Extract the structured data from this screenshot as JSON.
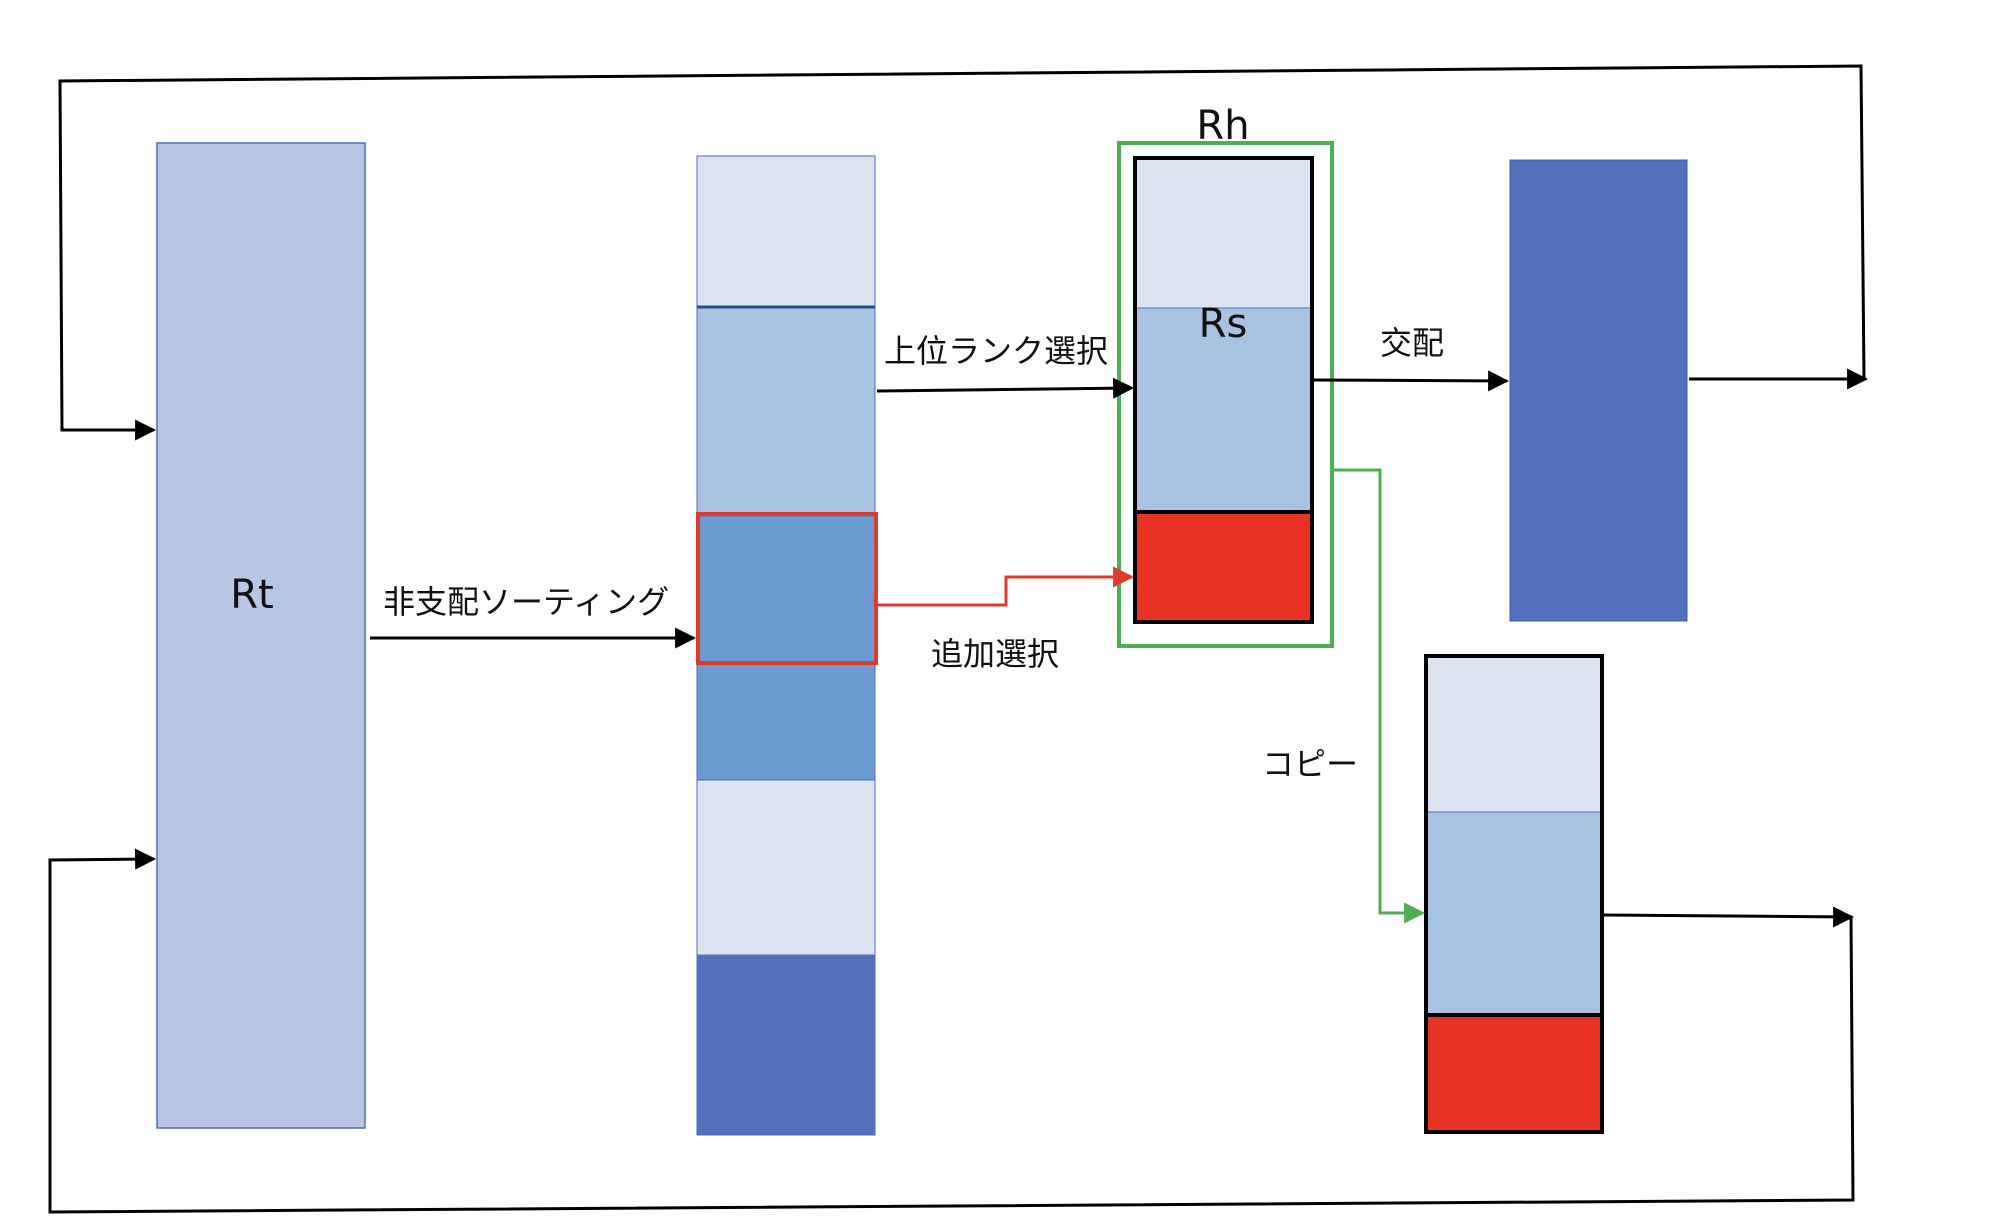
{
  "labels": {
    "rt": "Rt",
    "rh": "Rh",
    "rs": "Rs",
    "non_dominated_sorting": "非支配ソーティング",
    "top_rank_selection": "上位ランク選択",
    "additional_selection": "追加選択",
    "crossover": "交配",
    "copy": "コピー"
  },
  "colors": {
    "light_lavender": "#dce3f1",
    "light_blue": "#a8c2e2",
    "medium_blue": "#6b9bd0",
    "dark_blue": "#5271bd",
    "rt_fill": "#b7c6e4",
    "red": "#e83323",
    "red_outline": "#e03a2b",
    "green": "#4caf50",
    "black": "#000000"
  }
}
